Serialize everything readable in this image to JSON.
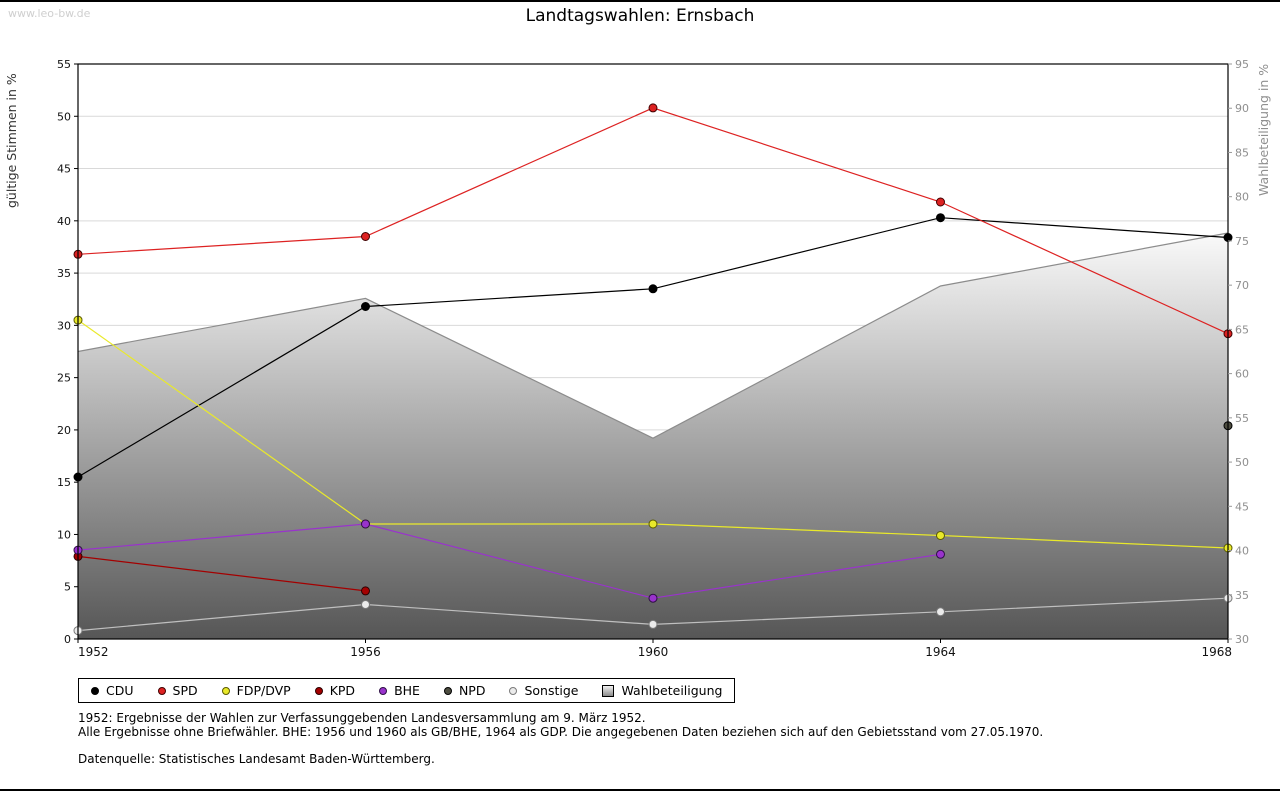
{
  "watermark": "www.leo-bw.de",
  "title": "Landtagswahlen: Ernsbach",
  "chart_data": {
    "type": "line",
    "x": [
      1952,
      1956,
      1960,
      1964,
      1968
    ],
    "left_axis": {
      "label": "gültige Stimmen in %",
      "min": 0,
      "max": 55,
      "step": 5
    },
    "right_axis": {
      "label": "Wahlbeteiligung in %",
      "min": 30,
      "max": 95,
      "step": 5
    },
    "grid": "horizontal",
    "legend_position": "bottom-left",
    "series": [
      {
        "name": "CDU",
        "type": "line",
        "axis": "left",
        "color": "#000000",
        "marker_border": "#000000",
        "values": [
          15.5,
          31.8,
          33.5,
          40.3,
          38.4
        ]
      },
      {
        "name": "SPD",
        "type": "line",
        "axis": "left",
        "color": "#dd2222",
        "marker_border": "#400000",
        "values": [
          36.8,
          38.5,
          50.8,
          41.8,
          29.2
        ]
      },
      {
        "name": "FDP/DVP",
        "type": "line",
        "axis": "left",
        "color": "#e9e92a",
        "marker_border": "#5a5a00",
        "values": [
          30.5,
          11.0,
          11.0,
          9.9,
          8.7
        ]
      },
      {
        "name": "KPD",
        "type": "line",
        "axis": "left",
        "color": "#a40000",
        "marker_border": "#2a0000",
        "values": [
          7.9,
          4.6,
          null,
          null,
          null
        ]
      },
      {
        "name": "BHE",
        "type": "line",
        "axis": "left",
        "color": "#9933cc",
        "marker_border": "#2e0f45",
        "values": [
          8.5,
          11.0,
          3.9,
          8.1,
          null
        ]
      },
      {
        "name": "NPD",
        "type": "line",
        "axis": "left",
        "color": "#4d4d40",
        "marker_border": "#000000",
        "values": [
          null,
          null,
          null,
          null,
          20.4
        ]
      },
      {
        "name": "Sonstige",
        "type": "line",
        "axis": "left",
        "color": "#bfbfbf",
        "marker_fill": "#ebebeb",
        "marker_border": "#7a7a7a",
        "values": [
          0.8,
          3.3,
          1.4,
          2.6,
          3.9
        ]
      },
      {
        "name": "Wahlbeteiligung",
        "type": "area",
        "axis": "right",
        "color": "#8c8c8c",
        "gradient": [
          "#fafafa",
          "#565656"
        ],
        "values": [
          62.5,
          68.5,
          52.7,
          69.9,
          75.9
        ]
      }
    ]
  },
  "footnotes": {
    "line1": "1952: Ergebnisse der Wahlen zur Verfassunggebenden Landesversammlung am 9. März 1952.",
    "line2": "Alle Ergebnisse ohne Briefwähler. BHE: 1956 und 1960 als GB/BHE, 1964 als GDP. Die angegebenen Daten beziehen sich auf den Gebietsstand vom 27.05.1970.",
    "source": "Datenquelle: Statistisches Landesamt Baden-Württemberg."
  }
}
